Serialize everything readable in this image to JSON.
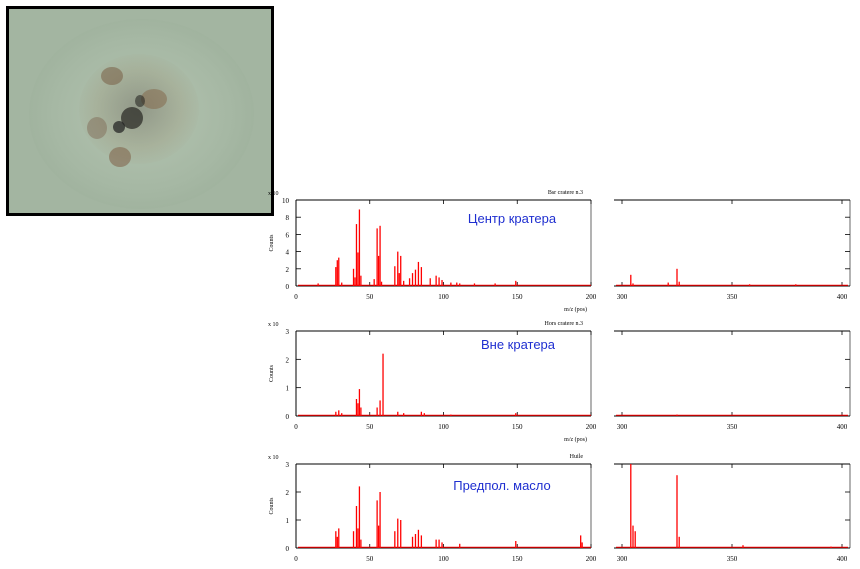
{
  "photo": {
    "caption": ""
  },
  "palette": {
    "series": "#ff0000",
    "axis": "#000000",
    "annotation": "#1f2fd0"
  },
  "chart_data": [
    {
      "type": "bar",
      "title": "Bsr cratere n.3",
      "annotation": "Центр кратера",
      "ylabel": "Counts",
      "yscale": "x 10",
      "ylim": [
        0,
        10
      ],
      "yticks": [
        "0",
        "2",
        "4",
        "6",
        "8",
        "10"
      ],
      "xlabel": "m/z (pos)",
      "left": {
        "xlim": [
          0,
          200
        ],
        "xticks": [
          "0",
          "50",
          "100",
          "150",
          "200"
        ]
      },
      "right": {
        "xlim": [
          300,
          400
        ],
        "xticks": [
          "300",
          "350",
          "400"
        ]
      },
      "peaks": [
        [
          15,
          0.3
        ],
        [
          27,
          2.2
        ],
        [
          28,
          3.0
        ],
        [
          29,
          3.3
        ],
        [
          31,
          0.4
        ],
        [
          39,
          2.0
        ],
        [
          40,
          1.0
        ],
        [
          41,
          7.2
        ],
        [
          42,
          3.9
        ],
        [
          43,
          8.9
        ],
        [
          44,
          1.2
        ],
        [
          53,
          0.8
        ],
        [
          55,
          6.7
        ],
        [
          56,
          3.5
        ],
        [
          57,
          7.0
        ],
        [
          58,
          0.5
        ],
        [
          67,
          2.3
        ],
        [
          69,
          4.0
        ],
        [
          70,
          1.5
        ],
        [
          71,
          3.5
        ],
        [
          73,
          0.6
        ],
        [
          77,
          0.9
        ],
        [
          79,
          1.5
        ],
        [
          81,
          1.9
        ],
        [
          83,
          2.8
        ],
        [
          85,
          2.2
        ],
        [
          91,
          0.9
        ],
        [
          95,
          1.2
        ],
        [
          97,
          1.0
        ],
        [
          99,
          0.7
        ],
        [
          105,
          0.4
        ],
        [
          109,
          0.4
        ],
        [
          111,
          0.3
        ],
        [
          121,
          0.3
        ],
        [
          135,
          0.3
        ],
        [
          149,
          0.6
        ],
        [
          304,
          1.3
        ],
        [
          305,
          0.3
        ],
        [
          321,
          0.4
        ],
        [
          325,
          2.0
        ],
        [
          326,
          0.5
        ],
        [
          358,
          0.2
        ],
        [
          379,
          0.2
        ]
      ]
    },
    {
      "type": "bar",
      "title": "Hors cratere n.3",
      "annotation": "Вне кратера",
      "ylabel": "Counts",
      "yscale": "x 10",
      "ylim": [
        0,
        3
      ],
      "yticks": [
        "0",
        "1",
        "2",
        "3"
      ],
      "xlabel": "m/z (pos)",
      "left": {
        "xlim": [
          0,
          200
        ],
        "xticks": [
          "0",
          "50",
          "100",
          "150",
          "200"
        ]
      },
      "right": {
        "xlim": [
          300,
          400
        ],
        "xticks": [
          "300",
          "350",
          "400"
        ]
      },
      "peaks": [
        [
          27,
          0.15
        ],
        [
          29,
          0.2
        ],
        [
          31,
          0.1
        ],
        [
          41,
          0.6
        ],
        [
          42,
          0.45
        ],
        [
          43,
          0.95
        ],
        [
          44,
          0.3
        ],
        [
          55,
          0.3
        ],
        [
          57,
          0.55
        ],
        [
          59,
          2.2
        ],
        [
          69,
          0.15
        ],
        [
          73,
          0.1
        ],
        [
          85,
          0.15
        ],
        [
          87,
          0.1
        ],
        [
          105,
          0.05
        ],
        [
          149,
          0.1
        ],
        [
          325,
          0.05
        ]
      ]
    },
    {
      "type": "bar",
      "title": "Huile",
      "annotation": "Предпол. масло",
      "ylabel": "Counts",
      "yscale": "x 10",
      "ylim": [
        0,
        3
      ],
      "yticks": [
        "0",
        "1",
        "2",
        "3"
      ],
      "xlabel": "",
      "left": {
        "xlim": [
          0,
          200
        ],
        "xticks": [
          "0",
          "50",
          "100",
          "150",
          "200"
        ]
      },
      "right": {
        "xlim": [
          300,
          400
        ],
        "xticks": [
          "300",
          "350",
          "400"
        ]
      },
      "peaks": [
        [
          27,
          0.6
        ],
        [
          28,
          0.4
        ],
        [
          29,
          0.7
        ],
        [
          39,
          0.6
        ],
        [
          41,
          1.5
        ],
        [
          42,
          0.7
        ],
        [
          43,
          2.2
        ],
        [
          44,
          0.3
        ],
        [
          55,
          1.7
        ],
        [
          56,
          0.8
        ],
        [
          57,
          2.0
        ],
        [
          67,
          0.6
        ],
        [
          69,
          1.05
        ],
        [
          71,
          1.0
        ],
        [
          79,
          0.4
        ],
        [
          81,
          0.5
        ],
        [
          83,
          0.65
        ],
        [
          85,
          0.45
        ],
        [
          95,
          0.3
        ],
        [
          97,
          0.3
        ],
        [
          99,
          0.2
        ],
        [
          111,
          0.15
        ],
        [
          149,
          0.25
        ],
        [
          193,
          0.45
        ],
        [
          194,
          0.2
        ],
        [
          304,
          3.1
        ],
        [
          305,
          0.8
        ],
        [
          306,
          0.6
        ],
        [
          325,
          2.6
        ],
        [
          326,
          0.4
        ],
        [
          355,
          0.1
        ],
        [
          395,
          0.05
        ]
      ]
    }
  ]
}
